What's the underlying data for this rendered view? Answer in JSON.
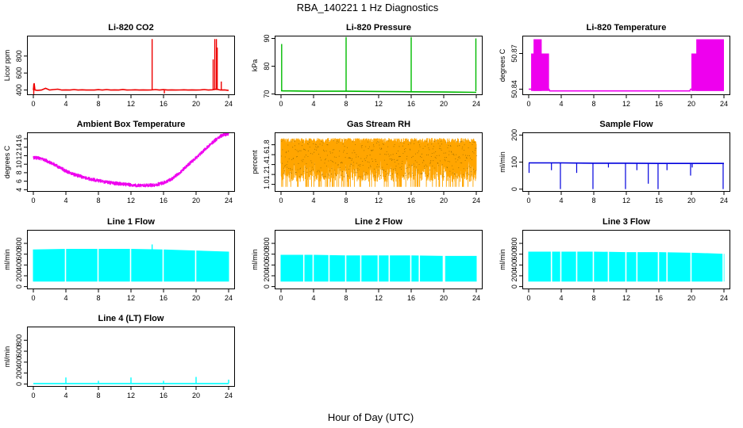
{
  "figure": {
    "title": "RBA_140221  1 Hz Diagnostics",
    "xlabel": "Hour of Day (UTC)"
  },
  "colors": {
    "red": "#ee0000",
    "green": "#00bb00",
    "magenta": "#ee00ee",
    "orange": "#ffa500",
    "blue": "#0000dd",
    "cyan": "#00ffff"
  },
  "chart_data": [
    {
      "type": "line",
      "title": "Li-820 CO2",
      "ylabel": "Licor ppm",
      "color": "red",
      "xlim": [
        0,
        24
      ],
      "ylim": [
        340,
        1040
      ],
      "xticks": [
        "0",
        "4",
        "8",
        "12",
        "16",
        "20",
        "24"
      ],
      "yticks": [
        400,
        600,
        800
      ],
      "series": [
        {
          "x": [
            0,
            0.1,
            0.2,
            0.5,
            1,
            1.5,
            2,
            2.5,
            3,
            3.5,
            4,
            4.5,
            5,
            5.5,
            6,
            6.5,
            7,
            7.5,
            8,
            8.5,
            9,
            9.5,
            10,
            10.5,
            11,
            11.5,
            12,
            12.5,
            13,
            13.5,
            14,
            14.5,
            15,
            15.5,
            16,
            16.5,
            17,
            17.5,
            18,
            18.5,
            19,
            19.5,
            20,
            20.5,
            21,
            21.5,
            22,
            22.5,
            23,
            23.5,
            24
          ],
          "y": [
            400,
            480,
            400,
            395,
            400,
            420,
            400,
            405,
            410,
            400,
            402,
            400,
            405,
            400,
            403,
            400,
            401,
            400,
            404,
            400,
            405,
            400,
            402,
            400,
            406,
            400,
            401,
            403,
            400,
            402,
            400,
            401,
            405,
            400,
            404,
            400,
            402,
            400,
            401,
            403,
            400,
            402,
            400,
            401,
            405,
            400,
            403,
            410,
            400,
            402,
            395
          ]
        }
      ],
      "spikes": [
        {
          "x": 0.05,
          "lo": 350,
          "hi": 470
        },
        {
          "x": 14.6,
          "lo": 400,
          "hi": 1000
        },
        {
          "x": 16.1,
          "lo": 360,
          "hi": 410
        },
        {
          "x": 22.1,
          "lo": 400,
          "hi": 760
        },
        {
          "x": 22.3,
          "lo": 400,
          "hi": 1000
        },
        {
          "x": 22.5,
          "lo": 400,
          "hi": 1000
        },
        {
          "x": 22.6,
          "lo": 400,
          "hi": 900
        },
        {
          "x": 23.1,
          "lo": 400,
          "hi": 500
        }
      ]
    },
    {
      "type": "line",
      "title": "Li-820 Pressure",
      "ylabel": "kPa",
      "color": "green",
      "xlim": [
        0,
        24
      ],
      "ylim": [
        69.6,
        91
      ],
      "xticks": [
        "0",
        "4",
        "8",
        "12",
        "16",
        "20",
        "24"
      ],
      "yticks": [
        70,
        80,
        90
      ],
      "series": [
        {
          "x": [
            0,
            0.3,
            1,
            4,
            7.9,
            8.1,
            12,
            15.9,
            16.1,
            20,
            23.9,
            24
          ],
          "y": [
            71.2,
            71.1,
            71.1,
            71.0,
            71.0,
            71.0,
            70.9,
            70.8,
            70.8,
            70.7,
            70.6,
            70.6
          ]
        }
      ],
      "spikes": [
        {
          "x": 0.08,
          "lo": 71,
          "hi": 88
        },
        {
          "x": 8.0,
          "lo": 71,
          "hi": 90.5
        },
        {
          "x": 16.0,
          "lo": 71,
          "hi": 90.5
        },
        {
          "x": 23.95,
          "lo": 71,
          "hi": 90
        }
      ]
    },
    {
      "type": "line",
      "title": "Li-820 Temperature",
      "ylabel": "degrees C",
      "color": "magenta",
      "xlim": [
        0,
        24
      ],
      "ylim": [
        50.835,
        50.885
      ],
      "xticks": [
        "0",
        "4",
        "8",
        "12",
        "16",
        "20",
        "24"
      ],
      "yticks": [
        50.84,
        50.87
      ],
      "yticklabels": [
        "50.84",
        "50.87"
      ],
      "series": [
        {
          "x": [
            0,
            2.5,
            2.6,
            19.8,
            19.9,
            24
          ],
          "y": [
            50.84,
            50.84,
            50.8385,
            50.8385,
            50.84,
            50.84
          ]
        }
      ],
      "bands": [
        {
          "x0": 0.3,
          "x1": 2.5,
          "lo": 50.8385,
          "hi": 50.87
        },
        {
          "x0": 0.6,
          "x1": 1.6,
          "lo": 50.8385,
          "hi": 50.882
        },
        {
          "x0": 20.0,
          "x1": 24.0,
          "lo": 50.8385,
          "hi": 50.87
        },
        {
          "x0": 20.6,
          "x1": 24.0,
          "lo": 50.8385,
          "hi": 50.882
        }
      ]
    },
    {
      "type": "line",
      "title": "Ambient Box Temperature",
      "ylabel": "degrees C",
      "color": "magenta",
      "xlim": [
        0,
        24
      ],
      "ylim": [
        3.5,
        17.5
      ],
      "xticks": [
        "0",
        "4",
        "8",
        "12",
        "16",
        "20",
        "24"
      ],
      "yticks": [
        4,
        6,
        8,
        10,
        12,
        14,
        16
      ],
      "series": [
        {
          "x": [
            0,
            1,
            2,
            3,
            4,
            5,
            6,
            7,
            8,
            9,
            10,
            11,
            12,
            13,
            14,
            15,
            16,
            17,
            18,
            19,
            20,
            21,
            22,
            23,
            24
          ],
          "y": [
            11.6,
            11.3,
            10.5,
            9.5,
            8.4,
            7.6,
            7.0,
            6.5,
            6.1,
            5.8,
            5.5,
            5.3,
            5.1,
            5.0,
            5.0,
            5.1,
            5.6,
            6.5,
            8.0,
            9.8,
            11.5,
            13.3,
            15.1,
            16.6,
            17.2
          ]
        }
      ],
      "noise": 0.5
    },
    {
      "type": "line",
      "title": "Gas Stream RH",
      "ylabel": "percent",
      "color": "orange",
      "xlim": [
        0,
        24
      ],
      "ylim": [
        0.85,
        2.05
      ],
      "xticks": [
        "0",
        "4",
        "8",
        "12",
        "16",
        "20",
        "24"
      ],
      "yticks": [
        1.0,
        1.2,
        1.4,
        1.6,
        1.8
      ],
      "yticklabels": [
        "1.0",
        "1.2",
        "1.4",
        "1.6",
        "1.8"
      ],
      "series": [
        {
          "x": [
            0,
            24
          ],
          "y": [
            1.85,
            1.85
          ]
        },
        {
          "x": [
            0,
            24
          ],
          "y": [
            1.05,
            1.05
          ]
        }
      ],
      "band_range": [
        1.0,
        1.95
      ]
    },
    {
      "type": "line",
      "title": "Sample Flow",
      "ylabel": "ml/min",
      "color": "blue",
      "xlim": [
        0,
        24
      ],
      "ylim": [
        -10,
        210
      ],
      "xticks": [
        "0",
        "4",
        "8",
        "12",
        "16",
        "20",
        "24"
      ],
      "yticks": [
        0,
        100,
        200
      ],
      "series": [
        {
          "x": [
            0,
            4,
            8,
            12,
            16,
            20,
            24
          ],
          "y": [
            97,
            97,
            96,
            96,
            95,
            95,
            95
          ]
        }
      ],
      "dips": [
        {
          "x": 0.05,
          "lo": 60
        },
        {
          "x": 2.8,
          "lo": 70
        },
        {
          "x": 3.9,
          "lo": 0
        },
        {
          "x": 5.9,
          "lo": 60
        },
        {
          "x": 7.9,
          "lo": 0
        },
        {
          "x": 9.8,
          "lo": 80
        },
        {
          "x": 11.9,
          "lo": 0
        },
        {
          "x": 13.3,
          "lo": 70
        },
        {
          "x": 14.7,
          "lo": 20
        },
        {
          "x": 15.9,
          "lo": 0
        },
        {
          "x": 17.0,
          "lo": 70
        },
        {
          "x": 19.9,
          "lo": 50
        },
        {
          "x": 20.1,
          "lo": 80
        },
        {
          "x": 23.9,
          "lo": 0
        }
      ]
    },
    {
      "type": "area",
      "title": "Line 1 Flow",
      "ylabel": "ml/min",
      "color": "cyan",
      "xlim": [
        0,
        24
      ],
      "ylim": [
        -50,
        1050
      ],
      "xticks": [
        "0",
        "4",
        "8",
        "12",
        "16",
        "20",
        "24"
      ],
      "yticks": [
        0,
        200,
        400,
        600,
        800
      ],
      "series": [
        {
          "x": [
            0,
            4,
            8,
            12,
            16,
            20,
            24
          ],
          "y": [
            680,
            690,
            690,
            690,
            680,
            660,
            640
          ]
        },
        {
          "x": [
            0,
            24
          ],
          "y": [
            100,
            100
          ]
        }
      ],
      "gaps": [
        3.95,
        7.95,
        11.95,
        15.95,
        19.95
      ],
      "spikes": [
        {
          "x": 14.6,
          "lo": 600,
          "hi": 780
        }
      ]
    },
    {
      "type": "area",
      "title": "Line 2 Flow",
      "ylabel": "ml/min",
      "color": "cyan",
      "xlim": [
        0,
        24
      ],
      "ylim": [
        -50,
        1050
      ],
      "xticks": [
        "0",
        "4",
        "8",
        "12",
        "16",
        "20",
        "24"
      ],
      "yticks": [
        0,
        200,
        400,
        600,
        800
      ],
      "series": [
        {
          "x": [
            0,
            4,
            8,
            12,
            16,
            20,
            24
          ],
          "y": [
            580,
            580,
            570,
            570,
            570,
            560,
            560
          ]
        },
        {
          "x": [
            0,
            24
          ],
          "y": [
            100,
            100
          ]
        }
      ],
      "gaps": [
        2.8,
        3.95,
        5.9,
        7.95,
        9.8,
        11.95,
        13.3,
        15.95,
        17.0,
        19.95,
        20.1
      ]
    },
    {
      "type": "area",
      "title": "Line 3 Flow",
      "ylabel": "ml/min",
      "color": "cyan",
      "xlim": [
        0,
        24
      ],
      "ylim": [
        -50,
        1050
      ],
      "xticks": [
        "0",
        "4",
        "8",
        "12",
        "16",
        "20",
        "24"
      ],
      "yticks": [
        0,
        200,
        400,
        600,
        800
      ],
      "series": [
        {
          "x": [
            0,
            4,
            8,
            12,
            16,
            20,
            24
          ],
          "y": [
            640,
            640,
            640,
            630,
            630,
            620,
            600
          ]
        },
        {
          "x": [
            0,
            24
          ],
          "y": [
            100,
            100
          ]
        }
      ],
      "gaps": [
        2.8,
        3.95,
        5.9,
        7.95,
        9.8,
        11.95,
        13.3,
        15.95,
        17.0,
        19.95,
        23.9
      ]
    },
    {
      "type": "line",
      "title": "Line 4 (LT) Flow",
      "ylabel": "ml/min",
      "color": "cyan",
      "xlim": [
        0,
        24
      ],
      "ylim": [
        -50,
        1050
      ],
      "xticks": [
        "0",
        "4",
        "8",
        "12",
        "16",
        "20",
        "24"
      ],
      "yticks": [
        0,
        200,
        400,
        600,
        800
      ],
      "series": [
        {
          "x": [
            0,
            24
          ],
          "y": [
            10,
            10
          ]
        }
      ],
      "spikes": [
        {
          "x": 4.0,
          "lo": 10,
          "hi": 120
        },
        {
          "x": 8.0,
          "lo": 10,
          "hi": 60
        },
        {
          "x": 12.0,
          "lo": 10,
          "hi": 120
        },
        {
          "x": 16.0,
          "lo": 10,
          "hi": 60
        },
        {
          "x": 20.0,
          "lo": 10,
          "hi": 130
        },
        {
          "x": 24.0,
          "lo": 10,
          "hi": 80
        }
      ]
    }
  ]
}
